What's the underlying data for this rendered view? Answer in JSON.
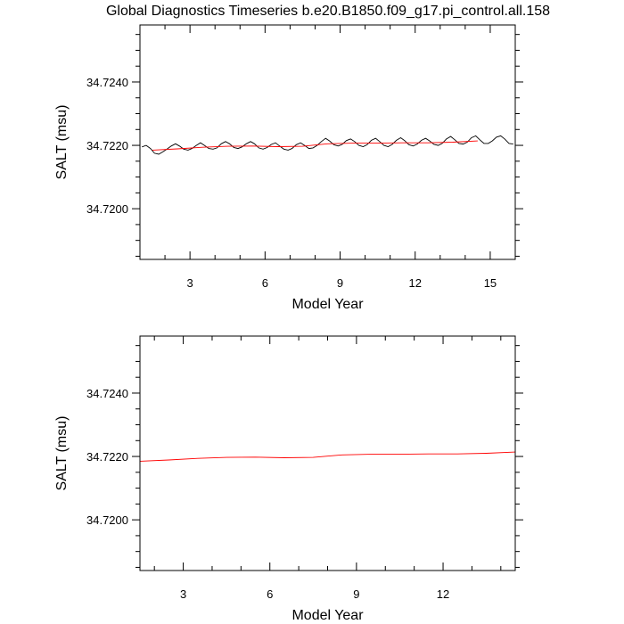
{
  "title": "Global Diagnostics Timeseries b.e20.B1850.f09_g17.pi_control.all.158",
  "chart_data": [
    {
      "type": "line",
      "xlabel": "Model Year",
      "ylabel": "SALT (msu)",
      "xlim": [
        1.0,
        16.0
      ],
      "ylim": [
        34.7184,
        34.7258
      ],
      "xticks": [
        3,
        6,
        9,
        12,
        15
      ],
      "xtick_labels": [
        "3",
        "6",
        "9",
        "12",
        "15"
      ],
      "yticks": [
        34.72,
        34.722,
        34.724
      ],
      "ytick_labels": [
        "34.7200",
        "34.7220",
        "34.7240"
      ],
      "grid": false,
      "series": [
        {
          "style": "monthly",
          "color": "#000000",
          "x": [
            1.08,
            1.25,
            1.42,
            1.58,
            1.75,
            1.92,
            2.08,
            2.25,
            2.42,
            2.58,
            2.75,
            2.92,
            3.08,
            3.25,
            3.42,
            3.58,
            3.75,
            3.92,
            4.08,
            4.25,
            4.42,
            4.58,
            4.75,
            4.92,
            5.08,
            5.25,
            5.42,
            5.58,
            5.75,
            5.92,
            6.08,
            6.25,
            6.42,
            6.58,
            6.75,
            6.92,
            7.08,
            7.25,
            7.42,
            7.58,
            7.75,
            7.92,
            8.08,
            8.25,
            8.42,
            8.58,
            8.75,
            8.92,
            9.08,
            9.25,
            9.42,
            9.58,
            9.75,
            9.92,
            10.08,
            10.25,
            10.42,
            10.58,
            10.75,
            10.92,
            11.08,
            11.25,
            11.42,
            11.58,
            11.75,
            11.92,
            12.08,
            12.25,
            12.42,
            12.58,
            12.75,
            12.92,
            13.08,
            13.25,
            13.42,
            13.58,
            13.75,
            13.92,
            14.08,
            14.25,
            14.42,
            14.58,
            14.75,
            14.92,
            15.08,
            15.25,
            15.42,
            15.58,
            15.75,
            15.92
          ],
          "y": [
            34.72195,
            34.722,
            34.7219,
            34.72175,
            34.72172,
            34.7218,
            34.72188,
            34.72198,
            34.72205,
            34.72198,
            34.72188,
            34.72185,
            34.7219,
            34.722,
            34.72208,
            34.722,
            34.7219,
            34.72188,
            34.72192,
            34.72205,
            34.72212,
            34.72205,
            34.72193,
            34.7219,
            34.72195,
            34.72205,
            34.72212,
            34.72205,
            34.72192,
            34.72188,
            34.72193,
            34.72203,
            34.72208,
            34.72198,
            34.72188,
            34.72185,
            34.7219,
            34.72202,
            34.72208,
            34.722,
            34.7219,
            34.72192,
            34.722,
            34.72212,
            34.72222,
            34.72214,
            34.72202,
            34.72198,
            34.72203,
            34.72215,
            34.7222,
            34.72212,
            34.722,
            34.72196,
            34.72202,
            34.72216,
            34.72222,
            34.72212,
            34.722,
            34.72196,
            34.72203,
            34.72216,
            34.72224,
            34.72215,
            34.72202,
            34.72198,
            34.72204,
            34.72216,
            34.72222,
            34.72214,
            34.72203,
            34.722,
            34.72206,
            34.7222,
            34.72228,
            34.72218,
            34.72206,
            34.72204,
            34.7221,
            34.72224,
            34.7223,
            34.72218,
            34.72206,
            34.72206,
            34.72214,
            34.72226,
            34.7223,
            34.7222,
            34.72206,
            34.72204
          ]
        },
        {
          "style": "annual",
          "color": "#ff0000",
          "x": [
            1.5,
            2.5,
            3.5,
            4.5,
            5.5,
            6.5,
            7.5,
            8.5,
            9.5,
            10.5,
            11.5,
            12.5,
            13.5,
            14.5
          ],
          "y": [
            34.72185,
            34.72189,
            34.72194,
            34.72197,
            34.72198,
            34.72196,
            34.72197,
            34.72205,
            34.72207,
            34.72207,
            34.72208,
            34.72208,
            34.7221,
            34.72214
          ]
        }
      ]
    },
    {
      "type": "line",
      "xlabel": "Model Year",
      "ylabel": "SALT (msu)",
      "xlim": [
        1.5,
        14.5
      ],
      "ylim": [
        34.7184,
        34.7258
      ],
      "xticks": [
        3,
        6,
        9,
        12
      ],
      "xtick_labels": [
        "3",
        "6",
        "9",
        "12"
      ],
      "yticks": [
        34.72,
        34.722,
        34.724
      ],
      "ytick_labels": [
        "34.7200",
        "34.7220",
        "34.7240"
      ],
      "grid": false,
      "series": [
        {
          "style": "annual",
          "color": "#ff0000",
          "x": [
            1.5,
            2.5,
            3.5,
            4.5,
            5.5,
            6.5,
            7.5,
            8.5,
            9.5,
            10.5,
            11.5,
            12.5,
            13.5,
            14.5
          ],
          "y": [
            34.72185,
            34.72189,
            34.72194,
            34.72197,
            34.72198,
            34.72196,
            34.72197,
            34.72205,
            34.72207,
            34.72207,
            34.72208,
            34.72208,
            34.7221,
            34.72214
          ]
        }
      ]
    }
  ]
}
